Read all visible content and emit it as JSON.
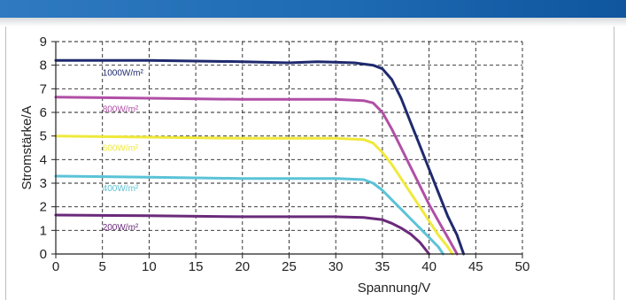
{
  "chart_data": {
    "type": "line",
    "title": "",
    "xlabel": "Spannung/V",
    "ylabel": "Stromstärke/A",
    "xlim": [
      0,
      50
    ],
    "ylim": [
      0,
      9
    ],
    "x_ticks": [
      "0",
      "5",
      "10",
      "15",
      "20",
      "25",
      "30",
      "35",
      "40",
      "45",
      "50"
    ],
    "y_ticks": [
      "0",
      "1",
      "2",
      "3",
      "4",
      "5",
      "6",
      "7",
      "8",
      "9"
    ],
    "grid": "dashed",
    "series": [
      {
        "name": "1000W/m²",
        "color": "#1f2a6e",
        "points": [
          [
            0,
            8.2
          ],
          [
            10,
            8.2
          ],
          [
            20,
            8.15
          ],
          [
            25,
            8.1
          ],
          [
            28,
            8.15
          ],
          [
            32,
            8.1
          ],
          [
            34,
            8.0
          ],
          [
            35,
            7.85
          ],
          [
            36,
            7.4
          ],
          [
            37,
            6.6
          ],
          [
            38,
            5.6
          ],
          [
            39,
            4.6
          ],
          [
            40,
            3.6
          ],
          [
            41,
            2.6
          ],
          [
            42,
            1.6
          ],
          [
            43,
            0.8
          ],
          [
            43.7,
            0
          ]
        ]
      },
      {
        "name": "800W/m²",
        "color": "#b04fa6",
        "points": [
          [
            0,
            6.65
          ],
          [
            10,
            6.6
          ],
          [
            20,
            6.55
          ],
          [
            30,
            6.55
          ],
          [
            33,
            6.5
          ],
          [
            34,
            6.4
          ],
          [
            35,
            6.0
          ],
          [
            36,
            5.3
          ],
          [
            37,
            4.5
          ],
          [
            38,
            3.7
          ],
          [
            39,
            2.9
          ],
          [
            40,
            2.1
          ],
          [
            41,
            1.4
          ],
          [
            42,
            0.7
          ],
          [
            43,
            0
          ]
        ]
      },
      {
        "name": "600W/m²",
        "color": "#f0e93c",
        "points": [
          [
            0,
            5.0
          ],
          [
            10,
            4.95
          ],
          [
            20,
            4.9
          ],
          [
            30,
            4.9
          ],
          [
            33,
            4.85
          ],
          [
            34,
            4.7
          ],
          [
            35,
            4.3
          ],
          [
            36,
            3.8
          ],
          [
            37,
            3.2
          ],
          [
            38,
            2.6
          ],
          [
            39,
            2.0
          ],
          [
            40,
            1.4
          ],
          [
            41,
            0.8
          ],
          [
            42,
            0.3
          ],
          [
            42.5,
            0
          ]
        ]
      },
      {
        "name": "400W/m²",
        "color": "#5bc3d7",
        "points": [
          [
            0,
            3.3
          ],
          [
            10,
            3.25
          ],
          [
            20,
            3.2
          ],
          [
            30,
            3.2
          ],
          [
            33,
            3.15
          ],
          [
            34,
            3.0
          ],
          [
            35,
            2.7
          ],
          [
            36,
            2.3
          ],
          [
            37,
            1.9
          ],
          [
            38,
            1.5
          ],
          [
            39,
            1.1
          ],
          [
            40,
            0.7
          ],
          [
            41,
            0.3
          ],
          [
            41.5,
            0
          ]
        ]
      },
      {
        "name": "200W/m²",
        "color": "#6a2a7a",
        "points": [
          [
            0,
            1.65
          ],
          [
            10,
            1.62
          ],
          [
            20,
            1.58
          ],
          [
            30,
            1.58
          ],
          [
            33,
            1.55
          ],
          [
            35,
            1.45
          ],
          [
            36,
            1.3
          ],
          [
            37,
            1.1
          ],
          [
            38,
            0.85
          ],
          [
            39,
            0.5
          ],
          [
            40,
            0
          ]
        ]
      }
    ]
  }
}
